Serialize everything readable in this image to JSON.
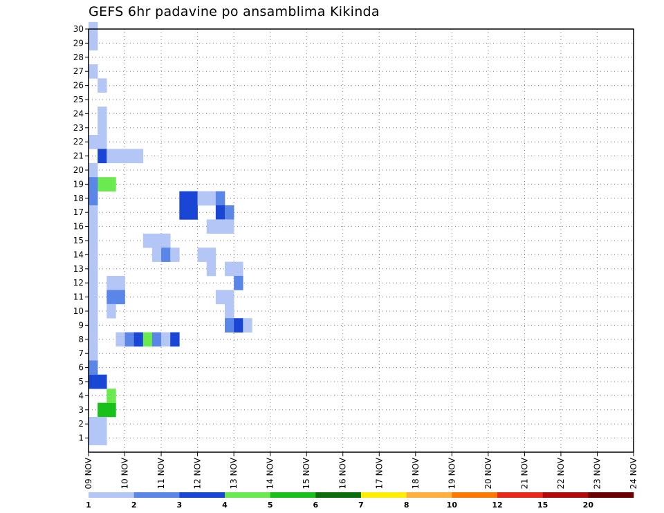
{
  "chart_data": {
    "type": "heatmap",
    "title": "GEFS 6hr padavine po ansamblima Kikinda",
    "xlabel": "",
    "ylabel": "",
    "x_tick_labels": [
      "09 NOV",
      "10 NOV",
      "11 NOV",
      "12 NOV",
      "13 NOV",
      "14 NOV",
      "15 NOV",
      "16 NOV",
      "17 NOV",
      "18 NOV",
      "19 NOV",
      "20 NOV",
      "21 NOV",
      "22 NOV",
      "23 NOV",
      "24 NOV"
    ],
    "y_tick_labels": [
      "1",
      "2",
      "3",
      "4",
      "5",
      "6",
      "7",
      "8",
      "9",
      "10",
      "11",
      "12",
      "13",
      "14",
      "15",
      "16",
      "17",
      "18",
      "19",
      "20",
      "21",
      "22",
      "23",
      "24",
      "25",
      "26",
      "27",
      "28",
      "29",
      "30"
    ],
    "ylim": [
      0,
      30
    ],
    "grid": true,
    "colorbar": {
      "labels": [
        "1",
        "2",
        "3",
        "4",
        "5",
        "6",
        "7",
        "8",
        "10",
        "12",
        "15",
        "20"
      ],
      "colors": [
        "#b3c6f5",
        "#5a86e8",
        "#1a46d6",
        "#6bea50",
        "#18c01a",
        "#0a6e0a",
        "#ffee00",
        "#ffb03a",
        "#ff7800",
        "#e8281a",
        "#b00a0a",
        "#6a0000"
      ]
    },
    "cells": [
      [
        0,
        30,
        1
      ],
      [
        0,
        29,
        1
      ],
      [
        0,
        22,
        1
      ],
      [
        1,
        22,
        1
      ],
      [
        0,
        5,
        3
      ],
      [
        1,
        5,
        3
      ],
      [
        1,
        19,
        4
      ],
      [
        2,
        19,
        4
      ],
      [
        1,
        3,
        5
      ],
      [
        2,
        3,
        5
      ],
      [
        2,
        4,
        4
      ],
      [
        1,
        21,
        3
      ],
      [
        2,
        21,
        1
      ],
      [
        3,
        21,
        1
      ],
      [
        4,
        21,
        1
      ],
      [
        5,
        21,
        1
      ],
      [
        0,
        27,
        1
      ],
      [
        0,
        20,
        1
      ],
      [
        0,
        19,
        2
      ],
      [
        0,
        18,
        2
      ],
      [
        0,
        17,
        1
      ],
      [
        0,
        16,
        1
      ],
      [
        0,
        15,
        1
      ],
      [
        0,
        14,
        1
      ],
      [
        0,
        13,
        1
      ],
      [
        0,
        12,
        1
      ],
      [
        0,
        11,
        1
      ],
      [
        0,
        10,
        1
      ],
      [
        0,
        9,
        1
      ],
      [
        0,
        8,
        1
      ],
      [
        0,
        7,
        1
      ],
      [
        0,
        6,
        2
      ],
      [
        0,
        2,
        1
      ],
      [
        0,
        1,
        1
      ],
      [
        1,
        26,
        1
      ],
      [
        1,
        24,
        1
      ],
      [
        1,
        23,
        1
      ],
      [
        1,
        2,
        1
      ],
      [
        1,
        1,
        1
      ],
      [
        2,
        12,
        1
      ],
      [
        3,
        12,
        1
      ],
      [
        2,
        11,
        2
      ],
      [
        3,
        11,
        2
      ],
      [
        2,
        10,
        1
      ],
      [
        3,
        8,
        1
      ],
      [
        4,
        8,
        2
      ],
      [
        5,
        8,
        3
      ],
      [
        6,
        8,
        4
      ],
      [
        7,
        8,
        2
      ],
      [
        8,
        8,
        1
      ],
      [
        9,
        8,
        3
      ],
      [
        6,
        15,
        1
      ],
      [
        7,
        15,
        1
      ],
      [
        8,
        15,
        1
      ],
      [
        7,
        14,
        1
      ],
      [
        8,
        14,
        2
      ],
      [
        9,
        14,
        1
      ],
      [
        10,
        18,
        3
      ],
      [
        11,
        18,
        3
      ],
      [
        12,
        18,
        1
      ],
      [
        10,
        17,
        3
      ],
      [
        11,
        17,
        3
      ],
      [
        13,
        18,
        1
      ],
      [
        14,
        18,
        2
      ],
      [
        14,
        17,
        3
      ],
      [
        15,
        17,
        2
      ],
      [
        13,
        16,
        1
      ],
      [
        14,
        16,
        1
      ],
      [
        15,
        16,
        1
      ],
      [
        12,
        14,
        1
      ],
      [
        13,
        14,
        1
      ],
      [
        13,
        13,
        1
      ],
      [
        15,
        13,
        1
      ],
      [
        16,
        13,
        1
      ],
      [
        16,
        12,
        2
      ],
      [
        14,
        11,
        1
      ],
      [
        15,
        11,
        1
      ],
      [
        15,
        10,
        1
      ],
      [
        15,
        9,
        2
      ],
      [
        16,
        9,
        3
      ],
      [
        17,
        9,
        1
      ]
    ]
  }
}
